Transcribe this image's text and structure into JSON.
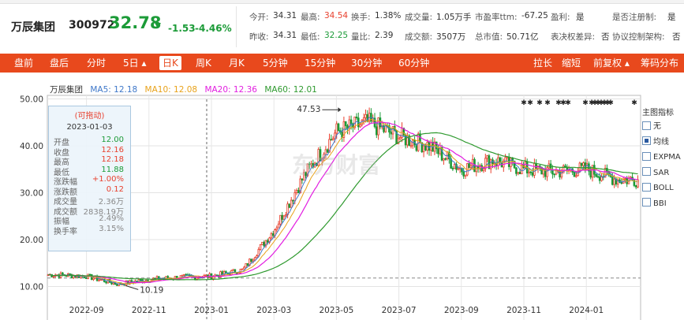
{
  "stock": {
    "name": "万辰集团",
    "code": "300972",
    "price": "32.78",
    "change": "-1.53",
    "change_pct": "-4.46%"
  },
  "quote_row1": [
    {
      "label": "今开:",
      "value": "34.31",
      "color": "normal"
    },
    {
      "label": "最高:",
      "value": "34.54",
      "color": "red"
    },
    {
      "label": "换手:",
      "value": "1.38%",
      "color": "normal"
    },
    {
      "label": "成交量:",
      "value": "1.05万手",
      "color": "normal"
    },
    {
      "label": "市盈率ttm:",
      "value": "-67.25",
      "color": "normal"
    },
    {
      "label": "盈利:",
      "value": "是",
      "color": "normal"
    },
    {
      "label": "是否注册制:",
      "value": "是",
      "color": "normal"
    }
  ],
  "quote_row2": [
    {
      "label": "昨收:",
      "value": "34.31",
      "color": "normal"
    },
    {
      "label": "最低:",
      "value": "32.25",
      "color": "green"
    },
    {
      "label": "量比:",
      "value": "2.39",
      "color": "normal"
    },
    {
      "label": "成交额:",
      "value": "3507万",
      "color": "normal"
    },
    {
      "label": "总市值:",
      "value": "50.71亿",
      "color": "normal"
    },
    {
      "label": "表决权差异:",
      "value": "否",
      "color": "normal"
    },
    {
      "label": "协议控制架构:",
      "value": "否",
      "color": "normal"
    }
  ],
  "toolbar": {
    "left_items": [
      "盘前",
      "盘后",
      "分时",
      "5日 ▴",
      "日K",
      "周K",
      "月K",
      "5分钟",
      "15分钟",
      "30分钟",
      "60分钟"
    ],
    "active": "日K",
    "right_items": [
      "拉长",
      "缩短",
      "前复权 ▴",
      "筹码分布"
    ]
  },
  "legend": {
    "name": "万辰集团",
    "ma5": "MA5: 12.18",
    "ma10": "MA10: 12.08",
    "ma20": "MA20: 12.36",
    "ma60": "MA60: 12.01"
  },
  "tooltip": {
    "header": "(可拖动)",
    "date": "2023-01-03",
    "rows": [
      {
        "label": "开盘",
        "value": "12.00",
        "color": "#1c9b38"
      },
      {
        "label": "收盘",
        "value": "12.16",
        "color": "#e8412f"
      },
      {
        "label": "最高",
        "value": "12.18",
        "color": "#e8412f"
      },
      {
        "label": "最低",
        "value": "11.88",
        "color": "#1c9b38"
      },
      {
        "label": "涨跌幅",
        "value": "+1.00%",
        "color": "#e8412f"
      },
      {
        "label": "涨跌额",
        "value": "0.12",
        "color": "#e8412f"
      },
      {
        "label": "成交量",
        "value": "2.36万",
        "color": "#888888"
      },
      {
        "label": "成交额",
        "value": "2838.19万",
        "color": "#888888"
      },
      {
        "label": "振幅",
        "value": "2.49%",
        "color": "#888888"
      },
      {
        "label": "换手率",
        "value": "3.15%",
        "color": "#888888"
      }
    ]
  },
  "indicator_panel": {
    "title": "主图指标",
    "items": [
      {
        "label": "无",
        "checked": false
      },
      {
        "label": "均线",
        "checked": true
      },
      {
        "label": "EXPMA",
        "checked": false
      },
      {
        "label": "SAR",
        "checked": false
      },
      {
        "label": "BOLL",
        "checked": false
      },
      {
        "label": "BBI",
        "checked": false
      }
    ]
  },
  "watermark": "东方财富",
  "colors": {
    "up": "#e8412f",
    "down": "#1c9b38",
    "ma5": "#3f78c9",
    "ma10": "#e8a21a",
    "ma20": "#e21ee0",
    "ma60": "#2f9a2f",
    "toolbar": "#e8491d"
  },
  "chart_data": {
    "type": "candlestick",
    "y_ticks": [
      "50.00",
      "40.00",
      "30.00",
      "20.00",
      "10.00"
    ],
    "ylim": [
      10,
      50
    ],
    "x_ticks": [
      "2022-09",
      "2022-11",
      "2023-01",
      "2023-03",
      "2023-05",
      "2023-07",
      "2023-09",
      "2023-11",
      "2024-01"
    ],
    "annotations": [
      {
        "label": "47.53",
        "date": "2023-05",
        "price": 47.53
      },
      {
        "label": "10.19",
        "date": "2022-10",
        "price": 10.19
      }
    ],
    "reference_line": 11.8,
    "key_points": [
      {
        "date": "2022-08",
        "price": 12.5
      },
      {
        "date": "2022-09",
        "price": 12.2
      },
      {
        "date": "2022-10",
        "price": 10.5
      },
      {
        "date": "2022-11",
        "price": 11.5
      },
      {
        "date": "2022-12",
        "price": 12.0
      },
      {
        "date": "2023-01",
        "price": 12.2
      },
      {
        "date": "2023-02",
        "price": 13.5
      },
      {
        "date": "2023-03",
        "price": 22.0
      },
      {
        "date": "2023-04",
        "price": 34.0
      },
      {
        "date": "2023-05",
        "price": 43.0
      },
      {
        "date": "2023-06",
        "price": 45.0
      },
      {
        "date": "2023-07",
        "price": 42.0
      },
      {
        "date": "2023-08",
        "price": 40.0
      },
      {
        "date": "2023-09",
        "price": 35.0
      },
      {
        "date": "2023-10",
        "price": 37.0
      },
      {
        "date": "2023-11",
        "price": 35.0
      },
      {
        "date": "2023-12",
        "price": 34.5
      },
      {
        "date": "2024-01",
        "price": 35.0
      },
      {
        "date": "2024-02",
        "price": 32.8
      }
    ]
  }
}
